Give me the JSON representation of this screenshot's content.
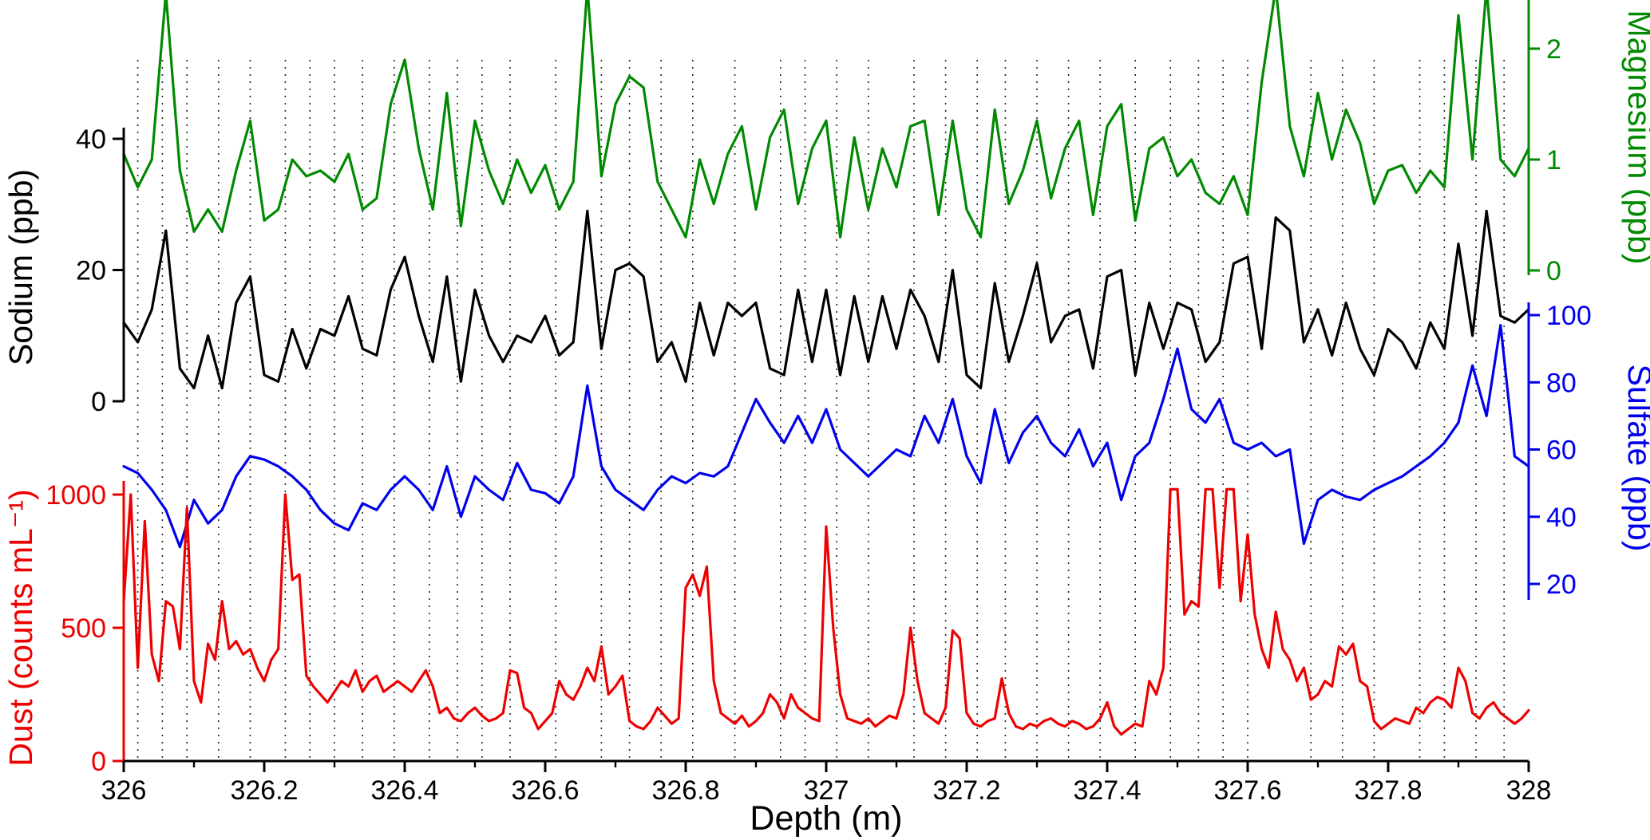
{
  "chart_data": {
    "type": "line",
    "title": "",
    "xlabel": "Depth (m)",
    "xlim": [
      326,
      328
    ],
    "x_ticks": [
      326,
      326.2,
      326.4,
      326.6,
      326.8,
      327,
      327.2,
      327.4,
      327.6,
      327.8,
      328
    ],
    "x_tick_labels": [
      "326",
      "326.2",
      "326.4",
      "326.6",
      "326.8",
      "327",
      "327.2",
      "327.4",
      "327.6",
      "327.8",
      "328"
    ],
    "x_minor_step": 0.1,
    "grid": "vertical-dashed",
    "legend": "none",
    "background": "#ffffff",
    "gridline_color": "#222222",
    "gridlines_x": [
      326.02,
      326.055,
      326.09,
      326.135,
      326.18,
      326.23,
      326.265,
      326.3,
      326.34,
      326.385,
      326.435,
      326.475,
      326.51,
      326.55,
      326.615,
      326.68,
      326.72,
      326.765,
      326.81,
      326.87,
      326.935,
      326.97,
      327.015,
      327.06,
      327.125,
      327.17,
      327.215,
      327.255,
      327.3,
      327.345,
      327.39,
      327.44,
      327.49,
      327.53,
      327.565,
      327.6,
      327.69,
      327.735,
      327.78,
      327.845,
      327.88,
      327.925,
      327.965
    ],
    "y_axes": [
      {
        "id": "sodium",
        "title": "Sodium (ppb)",
        "color": "#000000",
        "side": "left",
        "ticks": [
          0,
          20,
          40
        ],
        "tick_labels": [
          "0",
          "20",
          "40"
        ]
      },
      {
        "id": "dust",
        "title": "Dust (counts mL⁻¹)",
        "color": "#EE0000",
        "side": "left",
        "ticks": [
          0,
          500,
          1000
        ],
        "tick_labels": [
          "0",
          "500",
          "1000"
        ]
      },
      {
        "id": "magnesium",
        "title": "Magnesium (ppb)",
        "color": "#008A00",
        "side": "right",
        "ticks": [
          0,
          1,
          2
        ],
        "tick_labels": [
          "0",
          "1",
          "2"
        ]
      },
      {
        "id": "sulfate",
        "title": "Sulfate (ppb)",
        "color": "#0000EE",
        "side": "right",
        "ticks": [
          20,
          40,
          60,
          80,
          100
        ],
        "tick_labels": [
          "20",
          "40",
          "60",
          "80",
          "100"
        ]
      }
    ],
    "series": [
      {
        "name": "Sodium",
        "axis": "sodium",
        "color": "#000000",
        "units": "ppb",
        "x_start": 326.0,
        "x_step": 0.02,
        "values": [
          12,
          9,
          14,
          26,
          5,
          2,
          10,
          2,
          15,
          19,
          4,
          3,
          11,
          5,
          11,
          10,
          16,
          8,
          7,
          17,
          22,
          13,
          6,
          19,
          3,
          17,
          10,
          6,
          10,
          9,
          13,
          7,
          9,
          29,
          8,
          20,
          21,
          19,
          6,
          9,
          3,
          15,
          7,
          15,
          13,
          15,
          5,
          4,
          17,
          6,
          17,
          4,
          16,
          6,
          16,
          8,
          17,
          13,
          6,
          20,
          4,
          2,
          18,
          6,
          13,
          21,
          9,
          13,
          14,
          5,
          19,
          20,
          4,
          15,
          8,
          15,
          14,
          6,
          9,
          21,
          22,
          8,
          28,
          26,
          9,
          14,
          7,
          15,
          8,
          4,
          11,
          9,
          5,
          12,
          8,
          24,
          10,
          29,
          13,
          12,
          14
        ]
      },
      {
        "name": "Magnesium",
        "axis": "magnesium",
        "color": "#008A00",
        "units": "ppb",
        "x_start": 326.0,
        "x_step": 0.02,
        "values": [
          1.05,
          0.75,
          1.0,
          2.5,
          0.9,
          0.35,
          0.55,
          0.35,
          0.9,
          1.35,
          0.45,
          0.55,
          1.0,
          0.85,
          0.9,
          0.8,
          1.05,
          0.55,
          0.65,
          1.5,
          1.9,
          1.1,
          0.55,
          1.6,
          0.4,
          1.35,
          0.9,
          0.6,
          1.0,
          0.7,
          0.95,
          0.55,
          0.8,
          2.55,
          0.85,
          1.5,
          1.75,
          1.65,
          0.8,
          0.55,
          0.3,
          1.0,
          0.6,
          1.05,
          1.3,
          0.55,
          1.2,
          1.45,
          0.6,
          1.1,
          1.35,
          0.3,
          1.2,
          0.55,
          1.1,
          0.75,
          1.3,
          1.35,
          0.5,
          1.35,
          0.55,
          0.3,
          1.45,
          0.6,
          0.9,
          1.35,
          0.65,
          1.1,
          1.35,
          0.5,
          1.3,
          1.5,
          0.45,
          1.1,
          1.2,
          0.85,
          1.0,
          0.7,
          0.6,
          0.85,
          0.5,
          1.7,
          2.55,
          1.3,
          0.85,
          1.6,
          1.0,
          1.45,
          1.15,
          0.6,
          0.9,
          0.95,
          0.7,
          0.9,
          0.75,
          2.3,
          1.0,
          2.55,
          1.0,
          0.85,
          1.1
        ]
      },
      {
        "name": "Sulfate",
        "axis": "sulfate",
        "color": "#0000EE",
        "units": "ppb",
        "x_start": 326.0,
        "x_step": 0.02,
        "values": [
          55,
          53,
          48,
          42,
          31,
          45,
          38,
          42,
          52,
          58,
          57,
          55,
          52,
          48,
          42,
          38,
          36,
          44,
          42,
          48,
          52,
          48,
          42,
          55,
          40,
          52,
          48,
          45,
          56,
          48,
          47,
          44,
          52,
          79,
          55,
          48,
          45,
          42,
          48,
          52,
          50,
          53,
          52,
          55,
          65,
          75,
          68,
          62,
          70,
          62,
          72,
          60,
          56,
          52,
          56,
          60,
          58,
          70,
          62,
          75,
          58,
          50,
          72,
          56,
          65,
          70,
          62,
          58,
          66,
          55,
          62,
          45,
          58,
          62,
          75,
          90,
          72,
          68,
          75,
          62,
          60,
          62,
          58,
          60,
          32,
          45,
          48,
          46,
          45,
          48,
          50,
          52,
          55,
          58,
          62,
          68,
          85,
          70,
          97,
          58,
          55
        ]
      },
      {
        "name": "Dust",
        "axis": "dust",
        "color": "#EE0000",
        "units": "counts/mL",
        "x_start": 326.0,
        "x_step": 0.01,
        "values": [
          600,
          1000,
          350,
          900,
          400,
          300,
          600,
          580,
          420,
          950,
          300,
          220,
          440,
          380,
          600,
          420,
          450,
          400,
          420,
          350,
          300,
          380,
          420,
          1000,
          680,
          700,
          320,
          280,
          250,
          220,
          260,
          300,
          280,
          340,
          260,
          300,
          320,
          260,
          280,
          300,
          280,
          260,
          300,
          340,
          280,
          180,
          200,
          160,
          150,
          180,
          200,
          170,
          150,
          160,
          180,
          340,
          330,
          200,
          180,
          120,
          150,
          180,
          300,
          250,
          230,
          280,
          350,
          300,
          430,
          250,
          280,
          320,
          150,
          130,
          120,
          150,
          200,
          170,
          140,
          160,
          650,
          700,
          620,
          730,
          300,
          180,
          160,
          140,
          170,
          130,
          150,
          180,
          250,
          220,
          160,
          250,
          200,
          180,
          160,
          150,
          880,
          500,
          250,
          160,
          150,
          140,
          160,
          130,
          150,
          170,
          160,
          250,
          500,
          300,
          180,
          160,
          140,
          200,
          490,
          460,
          180,
          140,
          130,
          150,
          160,
          310,
          180,
          130,
          120,
          140,
          130,
          150,
          160,
          140,
          130,
          150,
          140,
          120,
          130,
          160,
          220,
          130,
          100,
          120,
          140,
          130,
          300,
          250,
          350,
          1020,
          1020,
          550,
          600,
          580,
          1020,
          1020,
          650,
          1020,
          1020,
          600,
          850,
          550,
          420,
          350,
          560,
          420,
          380,
          300,
          350,
          230,
          250,
          300,
          280,
          430,
          400,
          440,
          300,
          280,
          150,
          120,
          140,
          160,
          150,
          140,
          200,
          180,
          220,
          240,
          230,
          200,
          350,
          300,
          180,
          160,
          200,
          220,
          180,
          160,
          140,
          160,
          190
        ]
      }
    ]
  }
}
